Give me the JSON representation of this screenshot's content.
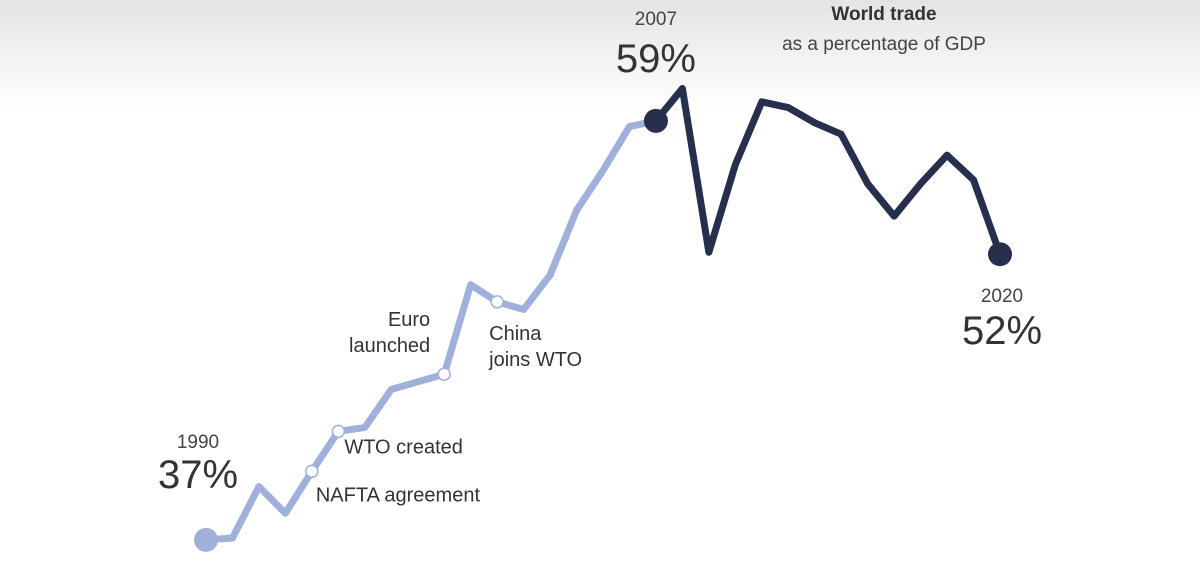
{
  "chart_data": {
    "type": "line",
    "title": "World trade",
    "subtitle": "as a percentage of GDP",
    "x": [
      1990,
      1991,
      1992,
      1993,
      1994,
      1995,
      1996,
      1997,
      1998,
      1999,
      2000,
      2001,
      2002,
      2003,
      2004,
      2005,
      2006,
      2007,
      2008,
      2009,
      2010,
      2011,
      2012,
      2013,
      2014,
      2015,
      2016,
      2017,
      2018,
      2019,
      2020
    ],
    "xlim": [
      1990,
      2020
    ],
    "ylim": [
      35,
      62
    ],
    "series": [
      {
        "color": "#9fb0da",
        "values": [
          37,
          37.1,
          39.8,
          38.4,
          40.6,
          42.7,
          42.9,
          44.9,
          45.3,
          45.7,
          50.4,
          49.5,
          49.1,
          50.9,
          54.3,
          56.4,
          58.7,
          59,
          null,
          null,
          null,
          null,
          null,
          null,
          null,
          null,
          null,
          null,
          null,
          null,
          null
        ],
        "value_labels": [
          "37%",
          null,
          null,
          null,
          null,
          null,
          null,
          null,
          null,
          null,
          null,
          null,
          null,
          null,
          null,
          null,
          null,
          null,
          null,
          null,
          null,
          null,
          null,
          null,
          null,
          null,
          null,
          null,
          null,
          null,
          null
        ]
      },
      {
        "color": "#26304d",
        "values": [
          null,
          null,
          null,
          null,
          null,
          null,
          null,
          null,
          null,
          null,
          null,
          null,
          null,
          null,
          null,
          null,
          null,
          59,
          60.7,
          52.1,
          56.7,
          60,
          59.7,
          58.9,
          58.3,
          55.7,
          54,
          55.7,
          57.2,
          55.9,
          52
        ],
        "value_labels": [
          null,
          null,
          null,
          null,
          null,
          null,
          null,
          null,
          null,
          null,
          null,
          null,
          null,
          null,
          null,
          null,
          null,
          "59%",
          null,
          null,
          null,
          null,
          null,
          null,
          null,
          null,
          null,
          null,
          null,
          null,
          "52%"
        ]
      }
    ],
    "annotations": [
      {
        "x": 1994,
        "text": [
          "NAFTA agreement"
        ]
      },
      {
        "x": 1995,
        "text": [
          "WTO created"
        ]
      },
      {
        "x": 1999,
        "text": [
          "Euro",
          "launched"
        ]
      },
      {
        "x": 2001,
        "text": [
          "China",
          "joins WTO"
        ]
      }
    ]
  }
}
